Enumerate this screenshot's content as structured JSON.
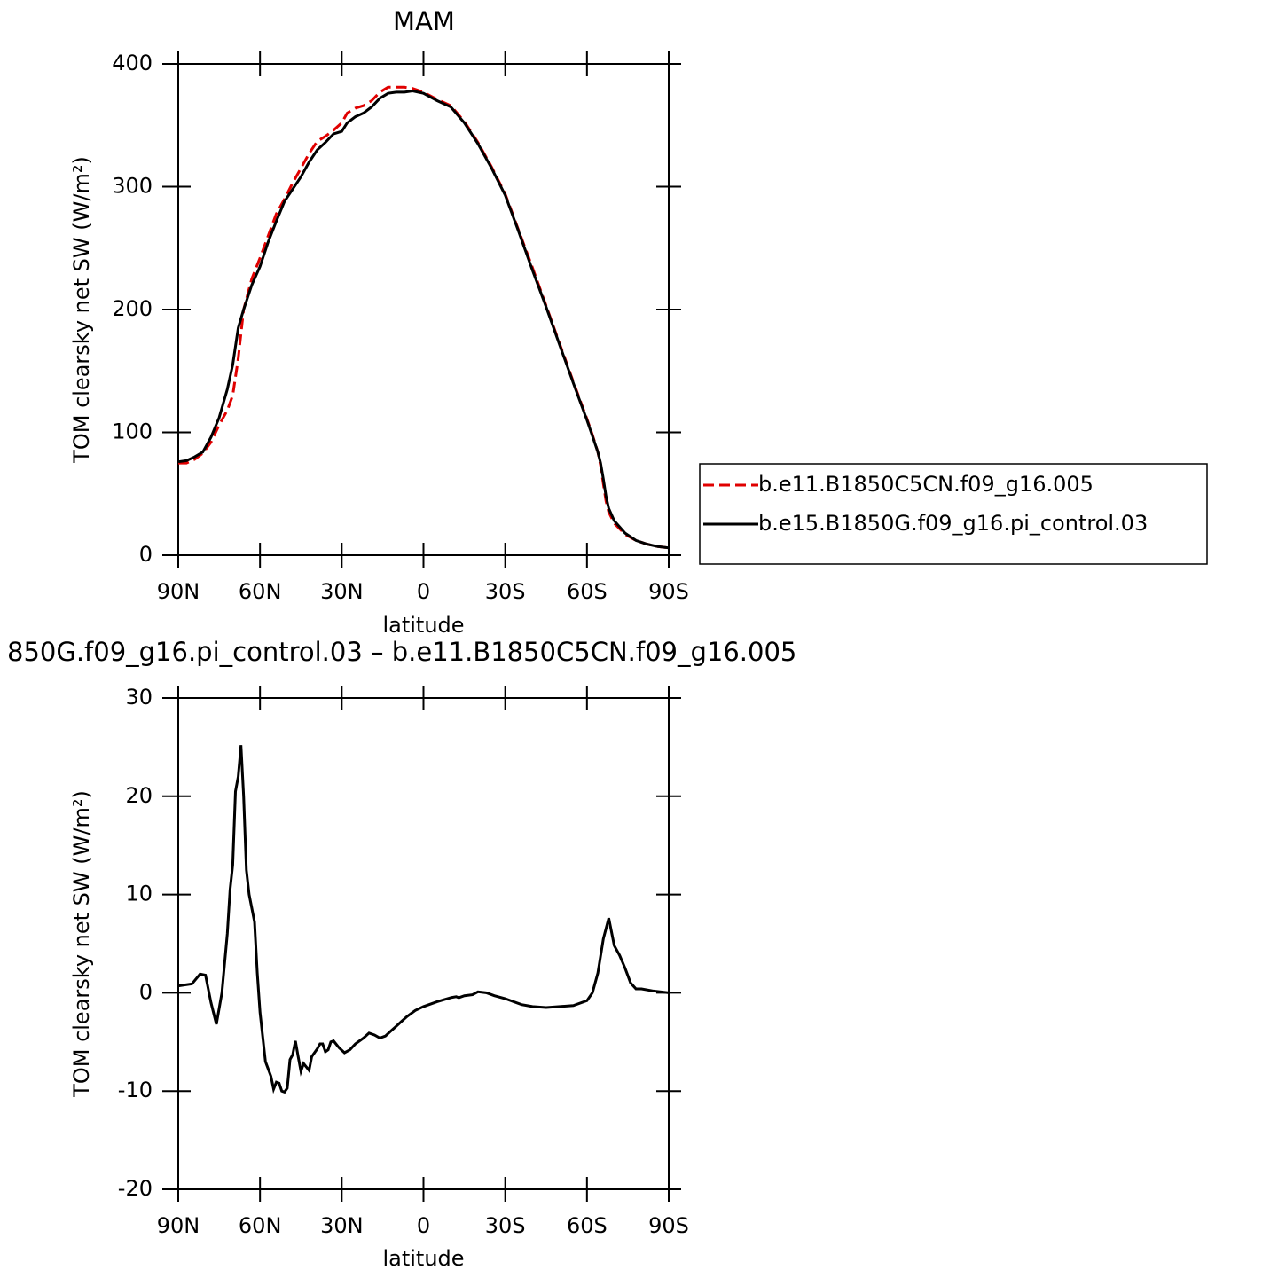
{
  "chart_data": [
    {
      "type": "line",
      "title": "MAM",
      "x_label": "latitude",
      "y_label": "TOM clearsky net SW (W/m²)",
      "xlim": [
        90,
        -90
      ],
      "xticks": [
        {
          "value": 90,
          "label": "90N"
        },
        {
          "value": 60,
          "label": "60N"
        },
        {
          "value": 30,
          "label": "30N"
        },
        0,
        {
          "value": -30,
          "label": "30S"
        },
        {
          "value": -60,
          "label": "60S"
        },
        {
          "value": -90,
          "label": "90S"
        }
      ],
      "ylim": [
        0,
        400
      ],
      "yticks": [
        0,
        100,
        200,
        300,
        400
      ],
      "legend": "right",
      "x": [
        90,
        87,
        84,
        81,
        78,
        75,
        72,
        70,
        68,
        66,
        63,
        60,
        57,
        54,
        51,
        48,
        45,
        42,
        39,
        36,
        33,
        30,
        28,
        25,
        22,
        19,
        16,
        13,
        10,
        7,
        4,
        0,
        -5,
        -10,
        -15,
        -20,
        -25,
        -30,
        -35,
        -40,
        -45,
        -50,
        -55,
        -60,
        -62,
        -64,
        -65,
        -66,
        -67,
        -68,
        -70,
        -74,
        -78,
        -82,
        -86,
        -90
      ],
      "series": [
        {
          "name": "b.e11.B1850C5CN.f09_g16.005",
          "color": "#e00000",
          "dash": true,
          "values": [
            75,
            75,
            78,
            83,
            92,
            106,
            118,
            130,
            160,
            200,
            225,
            242,
            260,
            278,
            290,
            303,
            315,
            327,
            337,
            341,
            346,
            352,
            360,
            364,
            366,
            370,
            377,
            381,
            381,
            381,
            380,
            377,
            371,
            366,
            353,
            336,
            316,
            294,
            264,
            234,
            203,
            172,
            141,
            111,
            98,
            84,
            73,
            58,
            44,
            35,
            26,
            17,
            12,
            9,
            7,
            6
          ]
        },
        {
          "name": "b.e15.B1850G.f09_g16.pi_control.03",
          "color": "#000000",
          "dash": false,
          "values": [
            76,
            77,
            80,
            84,
            96,
            112,
            135,
            155,
            185,
            200,
            220,
            235,
            255,
            272,
            288,
            298,
            308,
            320,
            330,
            336,
            343,
            345,
            352,
            357,
            360,
            365,
            372,
            376,
            377,
            377,
            378,
            376,
            370,
            365,
            352,
            335,
            315,
            293,
            263,
            232,
            202,
            171,
            140,
            110,
            97,
            84,
            75,
            62,
            48,
            38,
            28,
            18,
            12,
            9,
            7,
            6
          ]
        }
      ]
    },
    {
      "type": "line",
      "title": "850G.f09_g16.pi_control.03 – b.e11.B1850C5CN.f09_g16.005",
      "x_label": "latitude",
      "y_label": "TOM clearsky net SW (W/m²)",
      "xlim": [
        90,
        -90
      ],
      "xticks": [
        {
          "value": 90,
          "label": "90N"
        },
        {
          "value": 60,
          "label": "60N"
        },
        {
          "value": 30,
          "label": "30N"
        },
        0,
        {
          "value": -30,
          "label": "30S"
        },
        {
          "value": -60,
          "label": "60S"
        },
        {
          "value": -90,
          "label": "90S"
        }
      ],
      "ylim": [
        -20,
        30
      ],
      "yticks": [
        -20,
        -10,
        0,
        10,
        20,
        30
      ],
      "color": "#000000",
      "x": [
        90,
        85,
        82,
        80,
        78,
        76,
        74,
        72,
        71,
        70,
        69,
        68,
        67,
        66,
        65,
        64,
        62,
        61,
        60,
        58,
        56,
        55,
        54,
        53,
        52,
        51,
        50,
        49,
        48,
        47,
        46,
        45,
        44,
        42,
        41,
        39,
        38,
        37,
        36,
        35,
        34,
        33,
        31,
        29,
        27,
        25,
        22,
        20,
        18,
        16,
        14,
        12,
        10,
        8,
        6,
        3,
        0,
        -5,
        -10,
        -12,
        -13,
        -15,
        -18,
        -20,
        -23,
        -26,
        -30,
        -33,
        -36,
        -40,
        -45,
        -50,
        -55,
        -60,
        -62,
        -64,
        -66,
        -68,
        -70,
        -72,
        -74,
        -76,
        -78,
        -80,
        -84,
        -90
      ],
      "values": [
        0.7,
        0.9,
        1.9,
        1.8,
        -1,
        -3.2,
        0,
        6,
        10.5,
        13,
        20.5,
        22,
        25.2,
        20,
        12.5,
        10,
        7.2,
        2,
        -2,
        -7,
        -8.5,
        -9.8,
        -9.1,
        -9.2,
        -10,
        -10.1,
        -9.7,
        -6.8,
        -6.3,
        -4.9,
        -6.5,
        -8,
        -7.2,
        -7.9,
        -6.5,
        -5.7,
        -5.2,
        -5.2,
        -6,
        -5.8,
        -5,
        -4.9,
        -5.6,
        -6.1,
        -5.8,
        -5.2,
        -4.6,
        -4.1,
        -4.3,
        -4.6,
        -4.4,
        -3.9,
        -3.4,
        -2.9,
        -2.4,
        -1.8,
        -1.4,
        -0.9,
        -0.5,
        -0.4,
        -0.5,
        -0.3,
        -0.2,
        0.1,
        0,
        -0.3,
        -0.6,
        -0.9,
        -1.2,
        -1.4,
        -1.5,
        -1.4,
        -1.3,
        -0.8,
        0,
        2,
        5.5,
        7.6,
        4.8,
        3.8,
        2.5,
        1,
        0.4,
        0.4,
        0.2,
        0
      ]
    }
  ]
}
